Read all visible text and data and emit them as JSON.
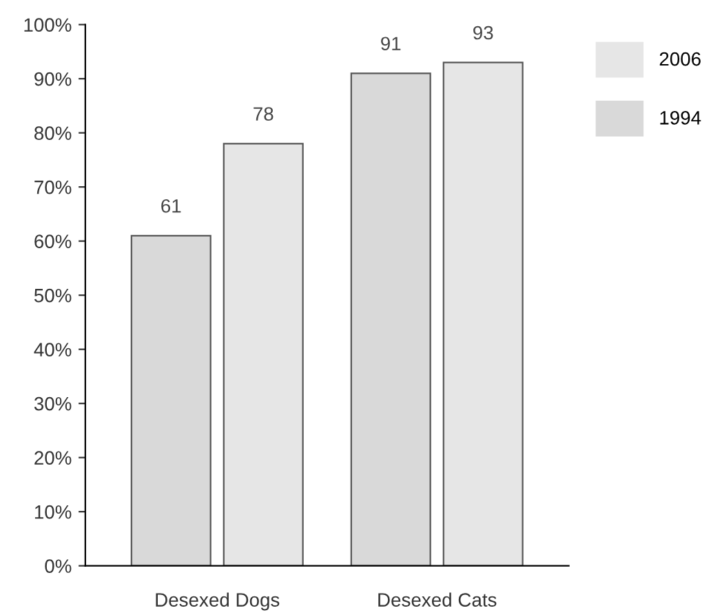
{
  "chart_data": {
    "type": "bar",
    "categories": [
      "Desexed Dogs",
      "Desexed Cats"
    ],
    "series": [
      {
        "name": "1994",
        "color": "#d9d9d9",
        "values": [
          61,
          91
        ]
      },
      {
        "name": "2006",
        "color": "#e6e6e6",
        "values": [
          78,
          93
        ]
      }
    ],
    "ylim": [
      0,
      100
    ],
    "yticks": [
      {
        "value": 0,
        "label": "0%"
      },
      {
        "value": 10,
        "label": "10%"
      },
      {
        "value": 20,
        "label": "20%"
      },
      {
        "value": 30,
        "label": "30%"
      },
      {
        "value": 40,
        "label": "40%"
      },
      {
        "value": 50,
        "label": "50%"
      },
      {
        "value": 60,
        "label": "60%"
      },
      {
        "value": 70,
        "label": "70%"
      },
      {
        "value": 80,
        "label": "80%"
      },
      {
        "value": 90,
        "label": "90%"
      },
      {
        "value": 100,
        "label": "100%"
      }
    ],
    "data_labels": true,
    "legend": "right",
    "grid": false
  }
}
